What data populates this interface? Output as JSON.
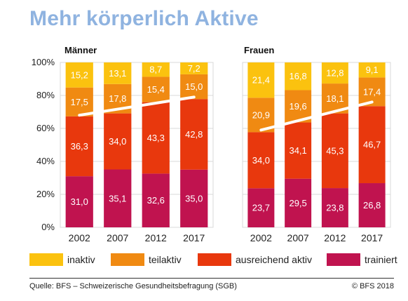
{
  "title": "Mehr körperlich Aktive",
  "colors": {
    "inaktiv": "#fbc20f",
    "teilaktiv": "#f08a12",
    "ausreichend_aktiv": "#e8380d",
    "trainiert": "#c0134f",
    "trend": "#ffffff",
    "grid": "#d9d9d9",
    "axis": "#333333"
  },
  "legend": {
    "items": [
      {
        "label": "inaktiv",
        "color": "#fbc20f"
      },
      {
        "label": "teilaktiv",
        "color": "#f08a12"
      },
      {
        "label": "ausreichend aktiv",
        "color": "#e8380d"
      },
      {
        "label": "trainiert",
        "color": "#c0134f"
      }
    ]
  },
  "chart_data": [
    {
      "type": "bar",
      "stacked": true,
      "title": "Männer",
      "categories": [
        "2002",
        "2007",
        "2012",
        "2017"
      ],
      "yticks": [
        "0%",
        "20%",
        "40%",
        "60%",
        "80%",
        "100%"
      ],
      "ylim": [
        0,
        100
      ],
      "grid": true,
      "series": [
        {
          "name": "trainiert",
          "values": [
            31.0,
            35.1,
            32.6,
            35.0
          ],
          "labels": [
            "31,0",
            "35,1",
            "32,6",
            "35,0"
          ]
        },
        {
          "name": "ausreichend aktiv",
          "values": [
            36.3,
            34.0,
            43.3,
            42.8
          ],
          "labels": [
            "36,3",
            "34,0",
            "43,3",
            "42,8"
          ]
        },
        {
          "name": "teilaktiv",
          "values": [
            17.5,
            17.8,
            15.4,
            15.0
          ],
          "labels": [
            "17,5",
            "17,8",
            "15,4",
            "15,0"
          ]
        },
        {
          "name": "inaktiv",
          "values": [
            15.2,
            13.1,
            8.7,
            7.2
          ],
          "labels": [
            "15,2",
            "13,1",
            "8,7",
            "7,2"
          ]
        }
      ],
      "trend_line": {
        "from": [
          2002,
          68
        ],
        "to": [
          2017,
          79
        ]
      }
    },
    {
      "type": "bar",
      "stacked": true,
      "title": "Frauen",
      "categories": [
        "2002",
        "2007",
        "2012",
        "2017"
      ],
      "ylim": [
        0,
        100
      ],
      "grid": true,
      "series": [
        {
          "name": "trainiert",
          "values": [
            23.7,
            29.5,
            23.8,
            26.8
          ],
          "labels": [
            "23,7",
            "29,5",
            "23,8",
            "26,8"
          ]
        },
        {
          "name": "ausreichend aktiv",
          "values": [
            34.0,
            34.1,
            45.3,
            46.7
          ],
          "labels": [
            "34,0",
            "34,1",
            "45,3",
            "46,7"
          ]
        },
        {
          "name": "teilaktiv",
          "values": [
            20.9,
            19.6,
            18.1,
            17.4
          ],
          "labels": [
            "20,9",
            "19,6",
            "18,1",
            "17,4"
          ]
        },
        {
          "name": "inaktiv",
          "values": [
            21.4,
            16.8,
            12.8,
            9.1
          ],
          "labels": [
            "21,4",
            "16,8",
            "12,8",
            "9,1"
          ]
        }
      ],
      "trend_line": {
        "from": [
          2002,
          59
        ],
        "to": [
          2017,
          76
        ]
      }
    }
  ],
  "footer": {
    "source": "Quelle: BFS – Schweizerische Gesundheitsbefragung (SGB)",
    "copyright": "© BFS 2018"
  }
}
